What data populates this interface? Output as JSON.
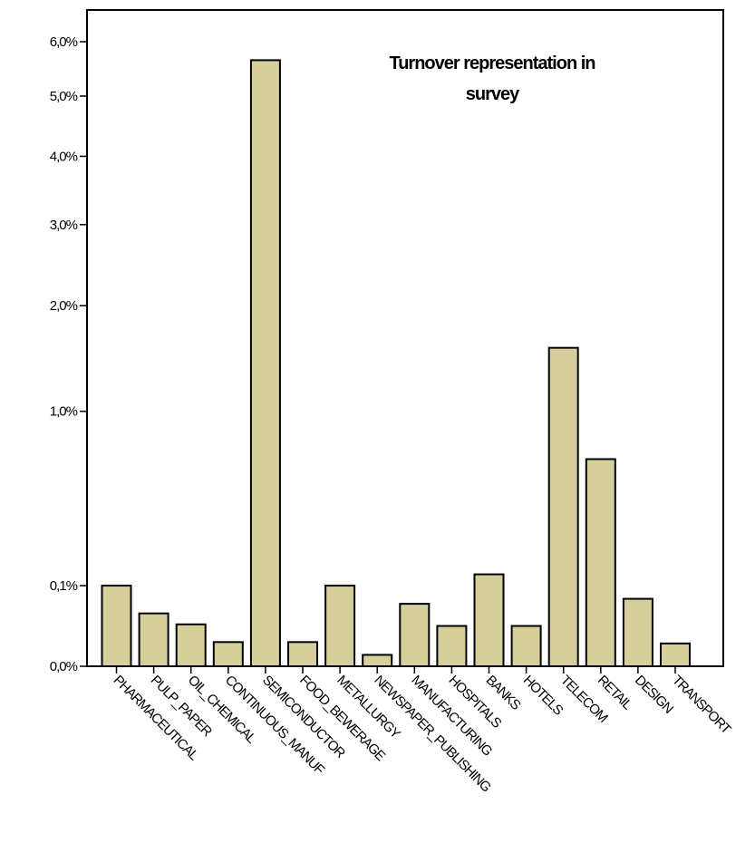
{
  "chart_data": {
    "type": "bar",
    "title_lines": [
      "Turnover representation in",
      "survey"
    ],
    "xlabel": "",
    "ylabel": "",
    "y_scale": "square-root",
    "ylim": [
      0,
      6.0
    ],
    "yticks": [
      {
        "value": 0.0,
        "label": "0,0%"
      },
      {
        "value": 0.1,
        "label": "0,1%"
      },
      {
        "value": 1.0,
        "label": "1,0%"
      },
      {
        "value": 2.0,
        "label": "2,0%"
      },
      {
        "value": 3.0,
        "label": "3,0%"
      },
      {
        "value": 4.0,
        "label": "4,0%"
      },
      {
        "value": 5.0,
        "label": "5,0%"
      },
      {
        "value": 6.0,
        "label": "6,0%"
      }
    ],
    "categories": [
      "PHARMACEUTICAL",
      "PULP_PAPER",
      "OIL_CHEMICAL",
      "CONTINUOUS_MANUF",
      "SEMICONDUCTOR",
      "FOOD_BEWERAGE",
      "METALLURGY",
      "NEWSPAPER_PUBLISHING",
      "MANUFACTURING",
      "HOSPITALS",
      "BANKS",
      "HOTELS",
      "TELECOM",
      "RETAIL",
      "DESIGN",
      "TRANSPORT"
    ],
    "values": [
      0.1,
      0.043,
      0.027,
      0.009,
      5.65,
      0.009,
      0.1,
      0.002,
      0.06,
      0.025,
      0.13,
      0.025,
      1.56,
      0.66,
      0.07,
      0.008
    ],
    "bar_color": "#d6cf9b",
    "grid": false
  }
}
